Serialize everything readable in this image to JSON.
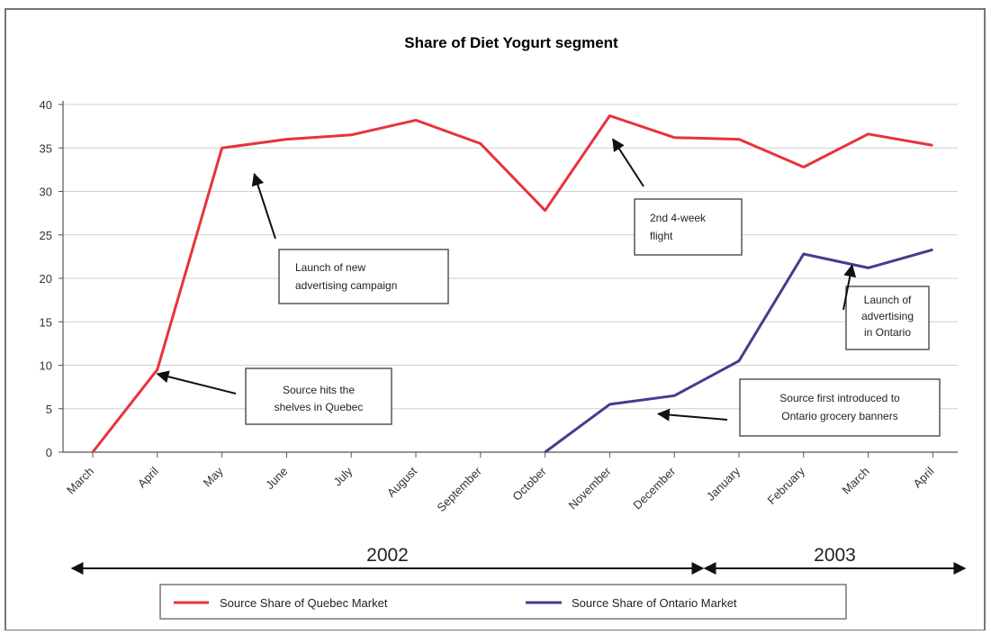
{
  "chart_data": {
    "type": "line",
    "title": "Share of Diet Yogurt segment",
    "categories": [
      "March",
      "April",
      "May",
      "June",
      "July",
      "August",
      "September",
      "October",
      "November",
      "December",
      "January",
      "February",
      "March",
      "April"
    ],
    "ylim": [
      0,
      40
    ],
    "yticks": [
      0,
      5,
      10,
      15,
      20,
      25,
      30,
      35,
      40
    ],
    "grid": true,
    "legend_position": "bottom",
    "years": [
      {
        "label": "2002",
        "from": 0,
        "to": 9.5
      },
      {
        "label": "2003",
        "from": 9.5,
        "to": 13
      }
    ],
    "series": [
      {
        "name": "Source Share of Quebec Market",
        "color": "#e8323c",
        "values": [
          0,
          9.5,
          35,
          36,
          36.5,
          38.2,
          35.5,
          27.8,
          38.7,
          36.2,
          36,
          32.8,
          36.6,
          35.3
        ]
      },
      {
        "name": "Source Share of Ontario Market",
        "color": "#4a3a8c",
        "values": [
          null,
          null,
          null,
          null,
          null,
          null,
          null,
          0,
          5.5,
          6.5,
          10.5,
          22.8,
          21.2,
          23.3
        ]
      }
    ],
    "annotations": [
      {
        "lines": [
          "Source hits the",
          "shelves in Quebec"
        ],
        "target": [
          1,
          9
        ]
      },
      {
        "lines": [
          "Launch of new",
          "advertising campaign"
        ],
        "target": [
          2.5,
          32
        ]
      },
      {
        "lines": [
          "2nd 4-week",
          "flight"
        ],
        "target": [
          8.05,
          36
        ]
      },
      {
        "lines": [
          "Launch of",
          "advertising",
          "in Ontario"
        ],
        "target": [
          11.75,
          21.5
        ]
      },
      {
        "lines": [
          "Source first introduced to",
          "Ontario grocery banners"
        ],
        "target": [
          8.75,
          4.4
        ]
      }
    ]
  }
}
